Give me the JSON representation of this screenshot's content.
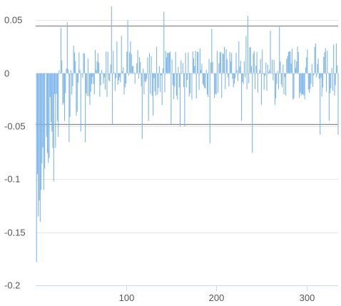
{
  "chart_data": {
    "type": "bar",
    "title": "",
    "xlabel": "",
    "ylabel": "",
    "xlim": [
      0,
      335
    ],
    "ylim": [
      -0.2,
      0.065
    ],
    "x_ticks": [
      100,
      200,
      300
    ],
    "x_tick_labels": [
      "100",
      "200",
      "300"
    ],
    "y_ticks": [
      0.05,
      0,
      -0.05,
      -0.1,
      -0.15,
      -0.2
    ],
    "y_tick_labels": [
      "0.05",
      "0",
      "-0.05",
      "-0.1",
      "-0.15",
      "-0.2"
    ],
    "grid": true,
    "reference_lines": [
      0.045,
      -0.048
    ],
    "colors": {
      "bar": "#7cb5ec",
      "grid": "#e6e6e6",
      "reference": "#888888",
      "axis": "#ccd6eb"
    },
    "seed": 7,
    "x": [
      1,
      2,
      3,
      4,
      5,
      6,
      7,
      8,
      10,
      12,
      15,
      18,
      20,
      22,
      25,
      28,
      30,
      32,
      35,
      37,
      40,
      42,
      45,
      50,
      55,
      60,
      65,
      70,
      75,
      80,
      84,
      85,
      90,
      95,
      98,
      100,
      102,
      104,
      105,
      110,
      115,
      118,
      120,
      125,
      130,
      135,
      140,
      142,
      145,
      150,
      155,
      160,
      165,
      170,
      175,
      180,
      185,
      190,
      193,
      195,
      200,
      205,
      210,
      215,
      220,
      225,
      228,
      230,
      233,
      235,
      240,
      245,
      250,
      255,
      260,
      265,
      270,
      275,
      280,
      285,
      290,
      295,
      300,
      305,
      310,
      315,
      320,
      325,
      330,
      333,
      335
    ],
    "values": [
      -0.178,
      -0.095,
      -0.135,
      -0.12,
      -0.14,
      -0.11,
      -0.085,
      -0.07,
      -0.09,
      -0.06,
      -0.08,
      -0.055,
      -0.102,
      -0.07,
      -0.06,
      0.043,
      -0.03,
      -0.045,
      0.048,
      -0.065,
      -0.02,
      0.026,
      -0.04,
      -0.055,
      -0.065,
      -0.03,
      -0.02,
      0.01,
      -0.01,
      0.02,
      0.063,
      -0.048,
      0.03,
      0.035,
      -0.02,
      -0.01,
      0.05,
      0.02,
      0.03,
      -0.01,
      0.015,
      -0.062,
      -0.02,
      -0.045,
      -0.04,
      -0.02,
      -0.03,
      0.058,
      0.015,
      -0.048,
      0.02,
      -0.05,
      -0.05,
      -0.022,
      0.014,
      0.02,
      -0.01,
      -0.02,
      -0.066,
      0.042,
      -0.02,
      0.02,
      -0.015,
      0.02,
      -0.01,
      0.03,
      -0.045,
      -0.01,
      0.035,
      0.054,
      -0.075,
      0.02,
      -0.03,
      0.01,
      0.04,
      -0.03,
      0.045,
      -0.02,
      0.02,
      -0.025,
      0.025,
      -0.02,
      0.015,
      -0.01,
      0.028,
      -0.058,
      0.02,
      -0.045,
      0.027,
      0.028,
      -0.058
    ]
  }
}
